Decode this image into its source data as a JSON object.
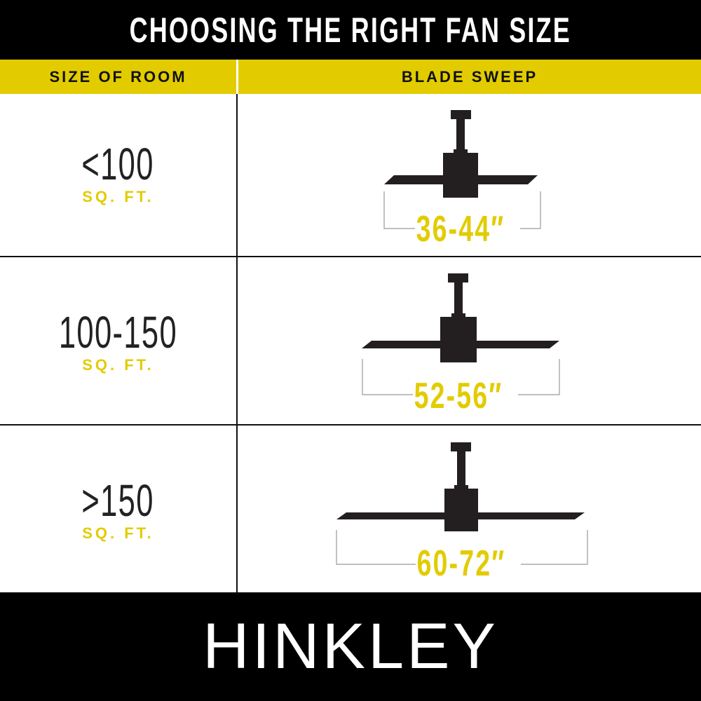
{
  "title": "CHOOSING THE RIGHT FAN SIZE",
  "headers": {
    "room": "SIZE OF ROOM",
    "sweep": "BLADE SWEEP"
  },
  "rows": [
    {
      "room_size": "<100",
      "unit": "SQ. FT.",
      "blade_sweep": "36-44″"
    },
    {
      "room_size": "100-150",
      "unit": "SQ. FT.",
      "blade_sweep": "52-56″"
    },
    {
      "room_size": ">150",
      "unit": "SQ. FT.",
      "blade_sweep": "60-72″"
    }
  ],
  "brand": "HINKLEY",
  "colors": {
    "accent": "#E2CC00",
    "dark": "#000000",
    "fan": "#231F20"
  }
}
